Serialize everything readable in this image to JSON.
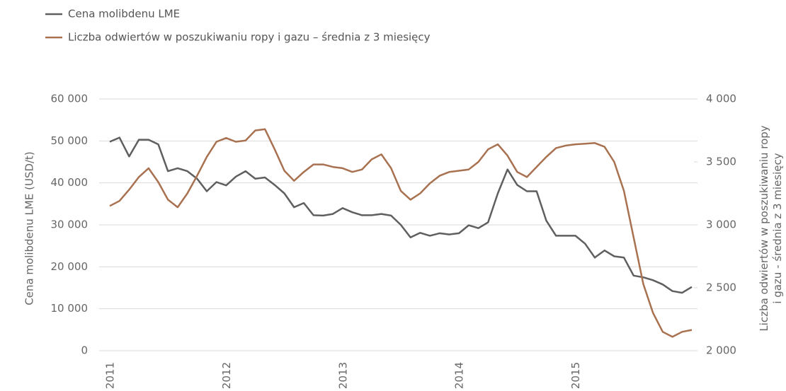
{
  "chart_data": {
    "type": "line",
    "y_label": "Cena molibdenu LME (USD/t)",
    "y2_label": "Liczba odwiertów w poszukiwaniu ropy i gazu - średnia z 3 miesięcy",
    "categories": [
      "2011",
      null,
      null,
      null,
      null,
      null,
      null,
      null,
      null,
      null,
      null,
      null,
      "2012",
      null,
      null,
      null,
      null,
      null,
      null,
      null,
      null,
      null,
      null,
      null,
      "2013",
      null,
      null,
      null,
      null,
      null,
      null,
      null,
      null,
      null,
      null,
      null,
      "2014",
      null,
      null,
      null,
      null,
      null,
      null,
      null,
      null,
      null,
      null,
      null,
      "2015",
      null,
      null,
      null,
      null,
      null,
      null,
      null,
      null,
      null,
      null,
      null,
      null
    ],
    "series": [
      {
        "name": "Cena molibdenu LME",
        "color": "#5f5f5f",
        "values": [
          49800,
          50800,
          46300,
          50300,
          50300,
          49200,
          42800,
          43500,
          42800,
          41000,
          38000,
          40200,
          39400,
          41500,
          42800,
          41000,
          41300,
          39500,
          37500,
          34200,
          35200,
          32300,
          32200,
          32600,
          34000,
          33000,
          32300,
          32300,
          32600,
          32200,
          30000,
          27000,
          28100,
          27400,
          28000,
          27700,
          28000,
          29900,
          29200,
          30600,
          37500,
          43200,
          39500,
          38000,
          38000,
          31000,
          27400,
          27400,
          27400,
          25500,
          22200,
          23900,
          22500,
          22200,
          17900,
          17500,
          16800,
          15800,
          14200,
          13800,
          15200
        ]
      },
      {
        "name": "Liczba odwiertów w poszukiwaniu ropy i gazu – średnia z 3 miesięcy",
        "color": "#a87150",
        "axis": "y2",
        "values": [
          3150,
          3190,
          3280,
          3380,
          3450,
          3340,
          3200,
          3140,
          3250,
          3390,
          3540,
          3660,
          3690,
          3660,
          3670,
          3750,
          3760,
          3600,
          3430,
          3350,
          3420,
          3480,
          3480,
          3460,
          3450,
          3420,
          3440,
          3520,
          3560,
          3450,
          3270,
          3200,
          3250,
          3330,
          3390,
          3420,
          3430,
          3440,
          3500,
          3600,
          3640,
          3550,
          3420,
          3380,
          3460,
          3540,
          3610,
          3630,
          3640,
          3645,
          3650,
          3620,
          3500,
          3270,
          2900,
          2530,
          2300,
          2150,
          2110,
          2150,
          2165
        ]
      }
    ],
    "ylim": [
      0,
      60000
    ],
    "yticks": [
      {
        "value": 0,
        "label": "0"
      },
      {
        "value": 10000,
        "label": "10 000"
      },
      {
        "value": 20000,
        "label": "20 000"
      },
      {
        "value": 30000,
        "label": "30 000"
      },
      {
        "value": 40000,
        "label": "40 000"
      },
      {
        "value": 50000,
        "label": "50 000"
      },
      {
        "value": 60000,
        "label": "60 000"
      }
    ],
    "y2lim": [
      2000,
      4000
    ],
    "y2ticks": [
      {
        "value": 2000,
        "label": "2 000"
      },
      {
        "value": 2500,
        "label": "2 500"
      },
      {
        "value": 3000,
        "label": "3 000"
      },
      {
        "value": 3500,
        "label": "3 500"
      },
      {
        "value": 4000,
        "label": "4 000"
      }
    ],
    "grid": true
  }
}
